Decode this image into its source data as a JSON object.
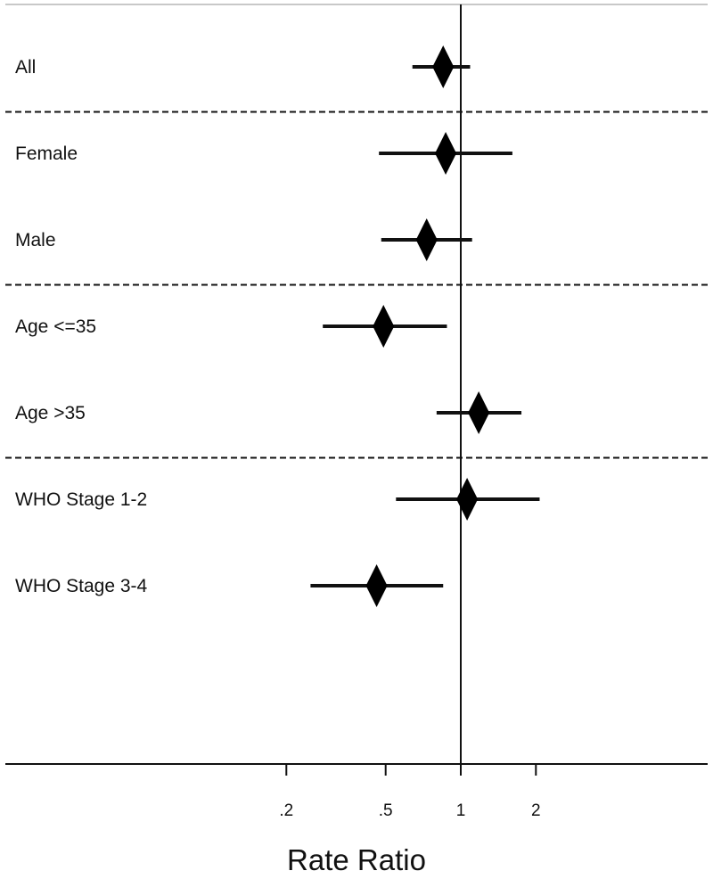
{
  "chart_data": {
    "type": "forest",
    "xscale": "log",
    "xlabel": "Rate Ratio",
    "xlim": [
      0.1,
      5
    ],
    "reference_value": 1,
    "xticks": [
      {
        "value": 0.2,
        "label": ".2"
      },
      {
        "value": 0.5,
        "label": ".5"
      },
      {
        "value": 1,
        "label": "1"
      },
      {
        "value": 2,
        "label": "2"
      }
    ],
    "groups": [
      {
        "rows": [
          {
            "label": "All",
            "estimate": 0.85,
            "ci_low": 0.64,
            "ci_high": 1.09
          }
        ]
      },
      {
        "rows": [
          {
            "label": "Female",
            "estimate": 0.87,
            "ci_low": 0.47,
            "ci_high": 1.61
          },
          {
            "label": "Male",
            "estimate": 0.73,
            "ci_low": 0.48,
            "ci_high": 1.11
          }
        ]
      },
      {
        "rows": [
          {
            "label": "Age <=35",
            "estimate": 0.49,
            "ci_low": 0.28,
            "ci_high": 0.88
          },
          {
            "label": "Age >35",
            "estimate": 1.18,
            "ci_low": 0.8,
            "ci_high": 1.75
          }
        ]
      },
      {
        "rows": [
          {
            "label": "WHO Stage 1-2",
            "estimate": 1.06,
            "ci_low": 0.55,
            "ci_high": 2.07
          },
          {
            "label": "WHO Stage 3-4",
            "estimate": 0.46,
            "ci_low": 0.25,
            "ci_high": 0.85
          }
        ]
      }
    ],
    "grid": false,
    "group_separators": "dashed"
  }
}
